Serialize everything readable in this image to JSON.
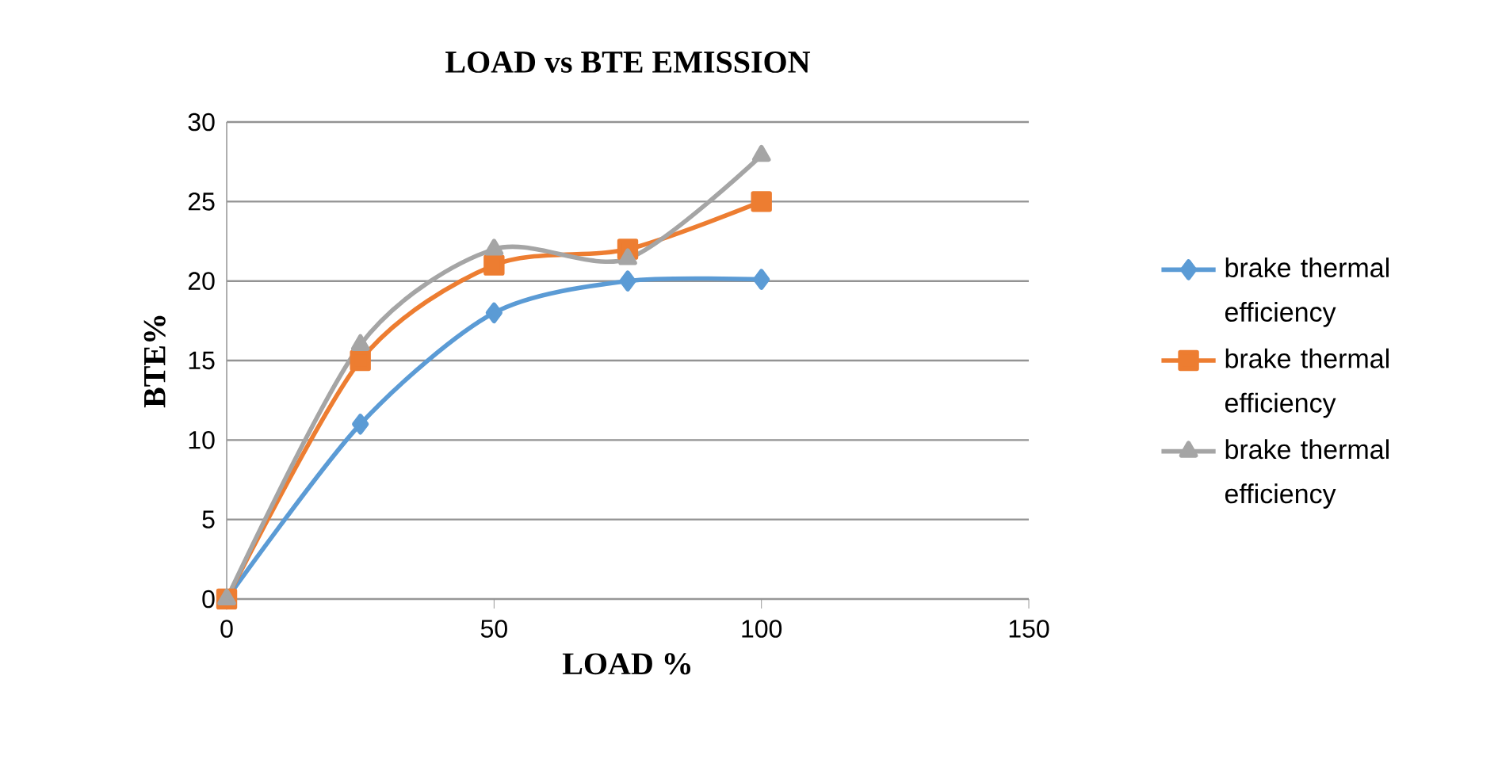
{
  "chart_data": {
    "type": "line",
    "title": "LOAD vs BTE EMISSION",
    "xlabel": "LOAD %",
    "ylabel": "BTE%",
    "x": [
      0,
      25,
      50,
      75,
      100
    ],
    "series": [
      {
        "name": "brake thermal efficiency",
        "color": "#5b9bd5",
        "marker": "diamond",
        "values": [
          0,
          11,
          18,
          20,
          20.1
        ]
      },
      {
        "name": "brake thermal efficiency",
        "color": "#ed7d31",
        "marker": "square",
        "values": [
          0,
          15,
          21,
          22,
          25
        ]
      },
      {
        "name": "brake thermal efficiency",
        "color": "#a5a5a5",
        "marker": "triangle",
        "values": [
          0,
          16,
          22,
          21.4,
          27.9
        ]
      }
    ],
    "xlim": [
      0,
      150
    ],
    "xticks": [
      0,
      50,
      100,
      150
    ],
    "ylim": [
      0,
      30
    ],
    "yticks": [
      0,
      5,
      10,
      15,
      20,
      25,
      30
    ],
    "grid": "y",
    "legend": "right",
    "line_style": "solid"
  }
}
